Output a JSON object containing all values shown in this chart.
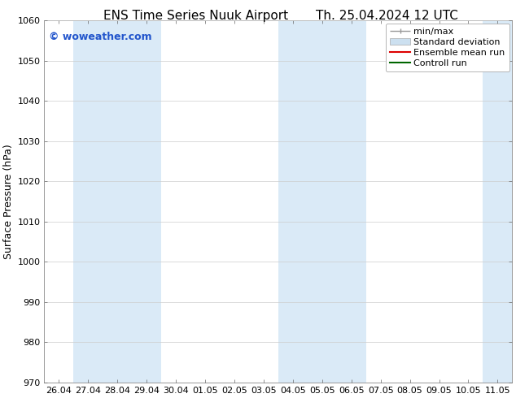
{
  "title_left": "ENS Time Series Nuuk Airport",
  "title_right": "Th. 25.04.2024 12 UTC",
  "ylabel": "Surface Pressure (hPa)",
  "ylim": [
    970,
    1060
  ],
  "yticks": [
    970,
    980,
    990,
    1000,
    1010,
    1020,
    1030,
    1040,
    1050,
    1060
  ],
  "xtick_labels": [
    "26.04",
    "27.04",
    "28.04",
    "29.04",
    "30.04",
    "01.05",
    "02.05",
    "03.05",
    "04.05",
    "05.05",
    "06.05",
    "07.05",
    "08.05",
    "09.05",
    "10.05",
    "11.05"
  ],
  "watermark": "© woweather.com",
  "watermark_color": "#2255cc",
  "bg_color": "#ffffff",
  "plot_bg_color": "#ffffff",
  "shaded_regions": [
    {
      "xstart": 1,
      "xend": 3,
      "color": "#daeaf7"
    },
    {
      "xstart": 8,
      "xend": 10,
      "color": "#daeaf7"
    },
    {
      "xstart": 15,
      "xend": 15.5,
      "color": "#daeaf7"
    }
  ],
  "legend_items": [
    {
      "label": "min/max",
      "color": "#999999",
      "type": "errorbar"
    },
    {
      "label": "Standard deviation",
      "color": "#cce0f0",
      "type": "bar"
    },
    {
      "label": "Ensemble mean run",
      "color": "#dd0000",
      "type": "line"
    },
    {
      "label": "Controll run",
      "color": "#006600",
      "type": "line"
    }
  ],
  "grid_color": "#cccccc",
  "title_fontsize": 11,
  "tick_fontsize": 8,
  "legend_fontsize": 8,
  "ylabel_fontsize": 9,
  "watermark_fontsize": 9
}
